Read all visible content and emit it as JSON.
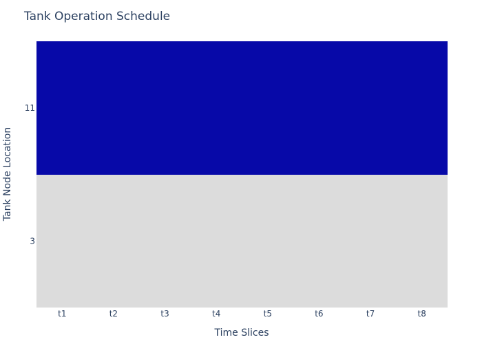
{
  "chart_data": {
    "type": "heatmap",
    "title": "Tank Operation Schedule",
    "xlabel": "Time Slices",
    "ylabel": "Tank Node Location",
    "x": [
      "t1",
      "t2",
      "t3",
      "t4",
      "t5",
      "t6",
      "t7",
      "t8"
    ],
    "y": [
      "3",
      "11"
    ],
    "z": [
      [
        0,
        0,
        0,
        0,
        0,
        0,
        0,
        0
      ],
      [
        1,
        1,
        1,
        1,
        1,
        1,
        1,
        1
      ]
    ],
    "colorscale": [
      [
        0,
        "#dcdcdc"
      ],
      [
        1,
        "#0709a8"
      ]
    ],
    "show_colorbar": false
  }
}
